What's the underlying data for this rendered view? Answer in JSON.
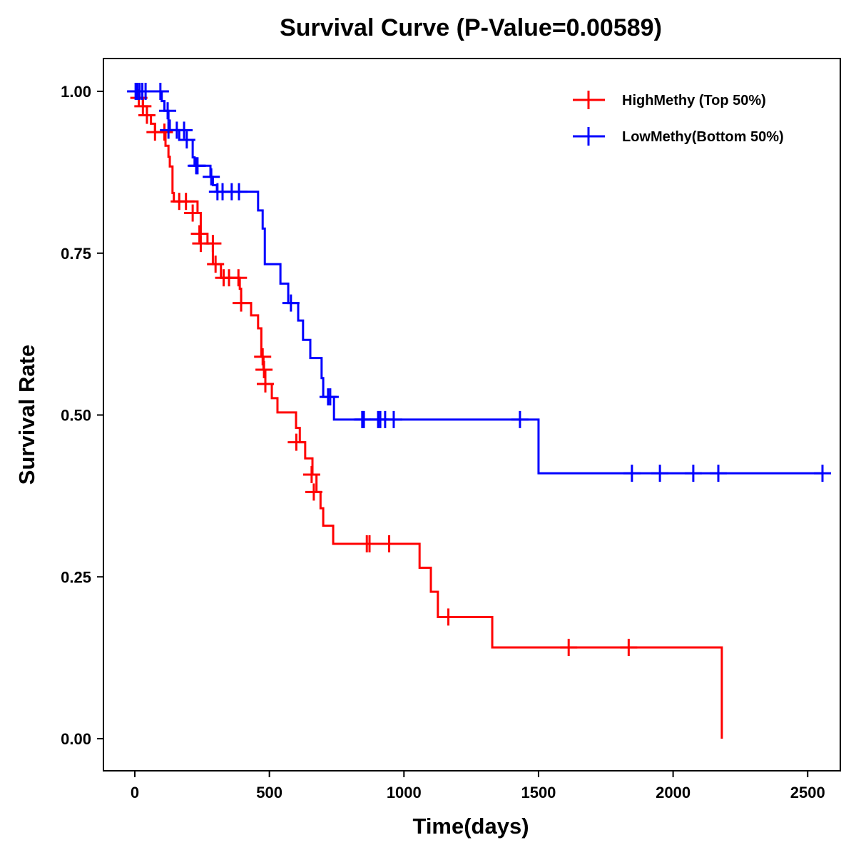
{
  "chart_data": {
    "type": "line",
    "subtype": "kaplan-meier-step",
    "title": "Survival Curve (P-Value=0.00589)",
    "xlabel": "Time(days)",
    "ylabel": "Survival Rate",
    "xlim": [
      -110,
      2620
    ],
    "ylim": [
      -0.05,
      1.05
    ],
    "xticks": [
      0,
      500,
      1000,
      1500,
      2000,
      2500
    ],
    "xtick_labels": [
      "0",
      "500",
      "1000",
      "1500",
      "2000",
      "2500"
    ],
    "yticks": [
      0,
      0.25,
      0.5,
      0.75,
      1.0
    ],
    "ytick_labels": [
      "0.00",
      "0.25",
      "0.50",
      "0.75",
      "1.00"
    ],
    "grid": false,
    "legend_position": "top-right",
    "series": [
      {
        "name": "HighMethy (Top 50%)",
        "color": "#ff0000",
        "end_time": 2181,
        "steps": [
          [
            0,
            1.0
          ],
          [
            10,
            0.99
          ],
          [
            30,
            0.977
          ],
          [
            45,
            0.963
          ],
          [
            60,
            0.95
          ],
          [
            75,
            0.937
          ],
          [
            114,
            0.916
          ],
          [
            125,
            0.899
          ],
          [
            130,
            0.884
          ],
          [
            140,
            0.843
          ],
          [
            145,
            0.83
          ],
          [
            233,
            0.812
          ],
          [
            245,
            0.78
          ],
          [
            270,
            0.765
          ],
          [
            290,
            0.733
          ],
          [
            320,
            0.712
          ],
          [
            390,
            0.695
          ],
          [
            395,
            0.673
          ],
          [
            432,
            0.654
          ],
          [
            458,
            0.634
          ],
          [
            470,
            0.59
          ],
          [
            478,
            0.57
          ],
          [
            485,
            0.548
          ],
          [
            509,
            0.526
          ],
          [
            530,
            0.504
          ],
          [
            599,
            0.48
          ],
          [
            613,
            0.458
          ],
          [
            633,
            0.433
          ],
          [
            660,
            0.408
          ],
          [
            675,
            0.381
          ],
          [
            690,
            0.356
          ],
          [
            700,
            0.329
          ],
          [
            737,
            0.301
          ],
          [
            1058,
            0.264
          ],
          [
            1100,
            0.227
          ],
          [
            1126,
            0.188
          ],
          [
            1328,
            0.141
          ],
          [
            2181,
            0.0
          ]
        ],
        "censored": [
          [
            15,
            0.99
          ],
          [
            30,
            0.977
          ],
          [
            45,
            0.963
          ],
          [
            75,
            0.937
          ],
          [
            110,
            0.937
          ],
          [
            165,
            0.83
          ],
          [
            190,
            0.83
          ],
          [
            215,
            0.812
          ],
          [
            240,
            0.78
          ],
          [
            245,
            0.765
          ],
          [
            290,
            0.765
          ],
          [
            300,
            0.733
          ],
          [
            330,
            0.712
          ],
          [
            350,
            0.712
          ],
          [
            385,
            0.712
          ],
          [
            395,
            0.673
          ],
          [
            475,
            0.59
          ],
          [
            480,
            0.57
          ],
          [
            485,
            0.548
          ],
          [
            600,
            0.458
          ],
          [
            657,
            0.408
          ],
          [
            665,
            0.381
          ],
          [
            862,
            0.301
          ],
          [
            872,
            0.301
          ],
          [
            945,
            0.301
          ],
          [
            1165,
            0.188
          ],
          [
            1612,
            0.141
          ],
          [
            1835,
            0.141
          ]
        ]
      },
      {
        "name": "LowMethy(Bottom 50%)",
        "color": "#0000ff",
        "end_time": 2555,
        "steps": [
          [
            0,
            1.0
          ],
          [
            100,
            0.985
          ],
          [
            110,
            0.97
          ],
          [
            125,
            0.955
          ],
          [
            130,
            0.94
          ],
          [
            165,
            0.925
          ],
          [
            215,
            0.898
          ],
          [
            222,
            0.885
          ],
          [
            281,
            0.868
          ],
          [
            290,
            0.855
          ],
          [
            305,
            0.845
          ],
          [
            458,
            0.816
          ],
          [
            475,
            0.788
          ],
          [
            483,
            0.733
          ],
          [
            541,
            0.703
          ],
          [
            570,
            0.673
          ],
          [
            607,
            0.646
          ],
          [
            625,
            0.616
          ],
          [
            652,
            0.588
          ],
          [
            694,
            0.557
          ],
          [
            700,
            0.528
          ],
          [
            740,
            0.493
          ],
          [
            1500,
            0.41
          ]
        ],
        "censored": [
          [
            3,
            1.0
          ],
          [
            10,
            1.0
          ],
          [
            18,
            1.0
          ],
          [
            28,
            1.0
          ],
          [
            40,
            1.0
          ],
          [
            95,
            1.0
          ],
          [
            122,
            0.97
          ],
          [
            125,
            0.94
          ],
          [
            156,
            0.94
          ],
          [
            183,
            0.94
          ],
          [
            193,
            0.925
          ],
          [
            228,
            0.885
          ],
          [
            233,
            0.885
          ],
          [
            284,
            0.868
          ],
          [
            307,
            0.845
          ],
          [
            326,
            0.845
          ],
          [
            360,
            0.845
          ],
          [
            387,
            0.845
          ],
          [
            580,
            0.673
          ],
          [
            718,
            0.528
          ],
          [
            726,
            0.528
          ],
          [
            845,
            0.493
          ],
          [
            851,
            0.493
          ],
          [
            904,
            0.493
          ],
          [
            912,
            0.493
          ],
          [
            930,
            0.493
          ],
          [
            962,
            0.493
          ],
          [
            1431,
            0.493
          ],
          [
            1847,
            0.41
          ],
          [
            1951,
            0.41
          ],
          [
            2075,
            0.41
          ],
          [
            2168,
            0.41
          ],
          [
            2555,
            0.41
          ]
        ]
      }
    ]
  }
}
